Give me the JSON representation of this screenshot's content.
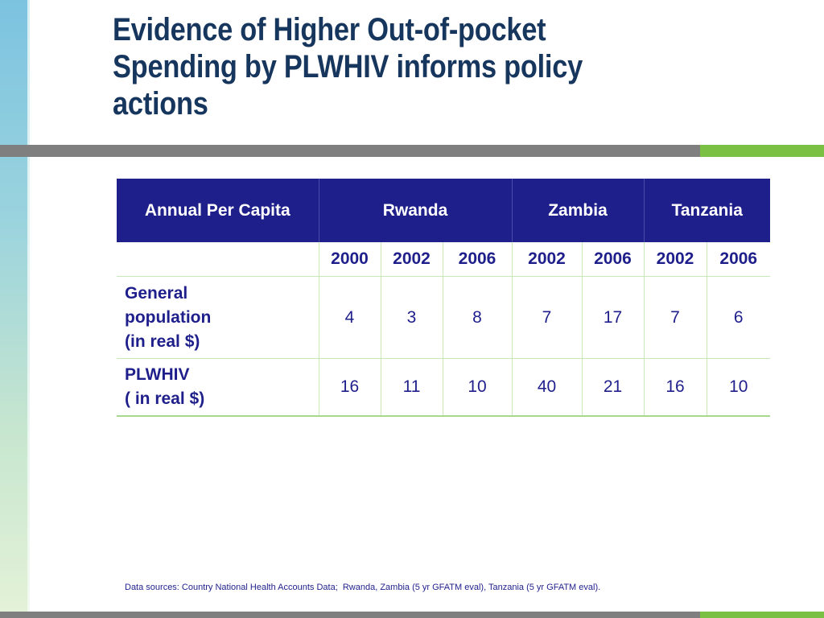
{
  "title": "Evidence of Higher Out-of-pocket Spending by PLWHIV informs policy actions",
  "table": {
    "header": {
      "first": "Annual Per Capita",
      "countries": [
        "Rwanda",
        "Zambia",
        "Tanzania"
      ]
    },
    "years": [
      "2000",
      "2002",
      "2006",
      "2002",
      "2006",
      "2002",
      "2006"
    ],
    "rows": [
      {
        "label_lines": [
          "General",
          "population",
          "(in real $)"
        ],
        "values": [
          "4",
          "3",
          "8",
          "7",
          "17",
          "7",
          "6"
        ]
      },
      {
        "label_lines": [
          "PLWHIV",
          "( in real $)"
        ],
        "values": [
          "16",
          "11",
          "10",
          "40",
          "21",
          "16",
          "10"
        ]
      }
    ]
  },
  "source": "Data sources: Country National Health Accounts Data;  Rwanda, Zambia (5 yr GFATM eval), Tanzania (5 yr GFATM eval).",
  "colors": {
    "title": "#17365d",
    "header_bg": "#1f1f8c",
    "accent_green": "#7ac143",
    "rule_gray": "#7f7f7f"
  }
}
